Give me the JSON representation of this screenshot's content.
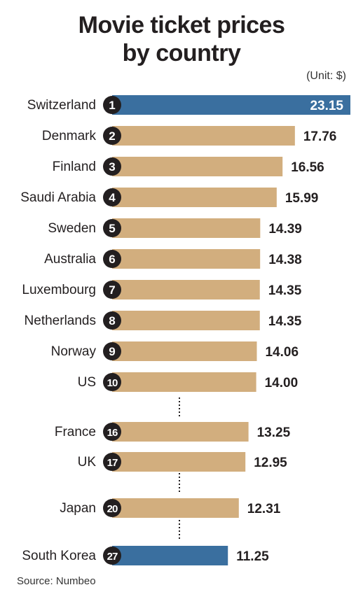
{
  "title_line1": "Movie ticket prices",
  "title_line2": "by country",
  "unit": "(Unit: $)",
  "source": "Source: Numbeo",
  "colors": {
    "highlight": "#3a6f9f",
    "default": "#d2ae7e",
    "badge": "#231f20"
  },
  "chart_data": {
    "type": "bar",
    "orientation": "horizontal",
    "title": "Movie ticket prices by country",
    "unit": "$",
    "xlim": [
      0,
      23.15
    ],
    "grid": false,
    "rows": [
      {
        "rank": "1",
        "country": "Switzerland",
        "value": 23.15,
        "label": "23.15",
        "highlight": true
      },
      {
        "rank": "2",
        "country": "Denmark",
        "value": 17.76,
        "label": "17.76",
        "highlight": false
      },
      {
        "rank": "3",
        "country": "Finland",
        "value": 16.56,
        "label": "16.56",
        "highlight": false
      },
      {
        "rank": "4",
        "country": "Saudi Arabia",
        "value": 15.99,
        "label": "15.99",
        "highlight": false
      },
      {
        "rank": "5",
        "country": "Sweden",
        "value": 14.39,
        "label": "14.39",
        "highlight": false
      },
      {
        "rank": "6",
        "country": "Australia",
        "value": 14.38,
        "label": "14.38",
        "highlight": false
      },
      {
        "rank": "7",
        "country": "Luxembourg",
        "value": 14.35,
        "label": "14.35",
        "highlight": false
      },
      {
        "rank": "8",
        "country": "Netherlands",
        "value": 14.35,
        "label": "14.35",
        "highlight": false
      },
      {
        "rank": "9",
        "country": "Norway",
        "value": 14.06,
        "label": "14.06",
        "highlight": false
      },
      {
        "rank": "10",
        "country": "US",
        "value": 14.0,
        "label": "14.00",
        "highlight": false
      },
      {
        "rank": "16",
        "country": "France",
        "value": 13.25,
        "label": "13.25",
        "highlight": false
      },
      {
        "rank": "17",
        "country": "UK",
        "value": 12.95,
        "label": "12.95",
        "highlight": false
      },
      {
        "rank": "20",
        "country": "Japan",
        "value": 12.31,
        "label": "12.31",
        "highlight": false
      },
      {
        "rank": "27",
        "country": "South Korea",
        "value": 11.25,
        "label": "11.25",
        "highlight": true
      }
    ]
  }
}
